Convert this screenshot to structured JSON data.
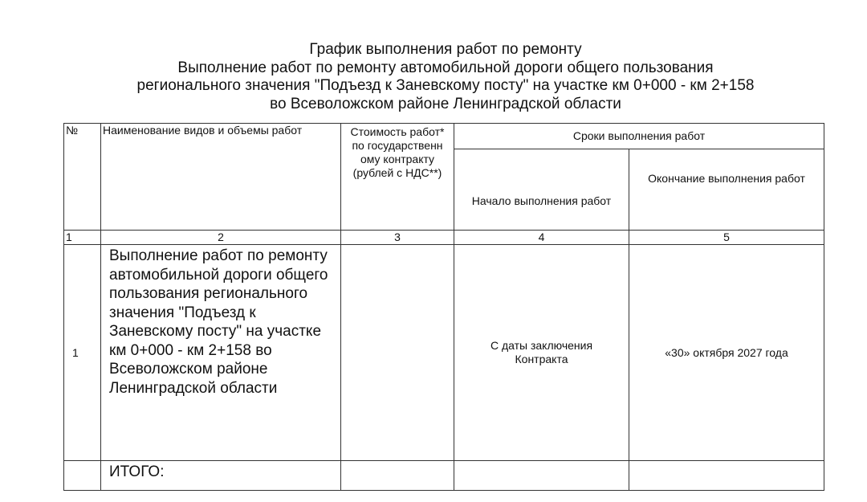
{
  "title": [
    "График выполнения работ по ремонту",
    "Выполнение работ по ремонту автомобильной дороги общего пользования",
    "регионального значения \"Подъезд к Заневскому посту\" на участке км 0+000 - км 2+158",
    "во Всеволожском районе Ленинградской области"
  ],
  "table": {
    "headers": {
      "num": "№",
      "name": "Наименование видов и объемы работ",
      "cost": "Стоимость работ* по государственн ому контракту (рублей с НДС**)",
      "terms": "Сроки выполнения работ",
      "start": "Начало выполнения работ",
      "end": "Окончание выполнения работ"
    },
    "col_numbers": [
      "1",
      "2",
      "3",
      "4",
      "5"
    ],
    "rows": [
      {
        "num": "1",
        "name": "Выполнение работ по ремонту автомобильной дороги общего пользования регионального значения \"Подъезд к Заневскому посту\" на участке км 0+000 - км 2+158 во Всеволожском районе Ленинградской области",
        "cost": "",
        "start": "С даты заключения Контракта",
        "end": "«30» октября 2027 года"
      }
    ],
    "total_label": "ИТОГО:"
  }
}
